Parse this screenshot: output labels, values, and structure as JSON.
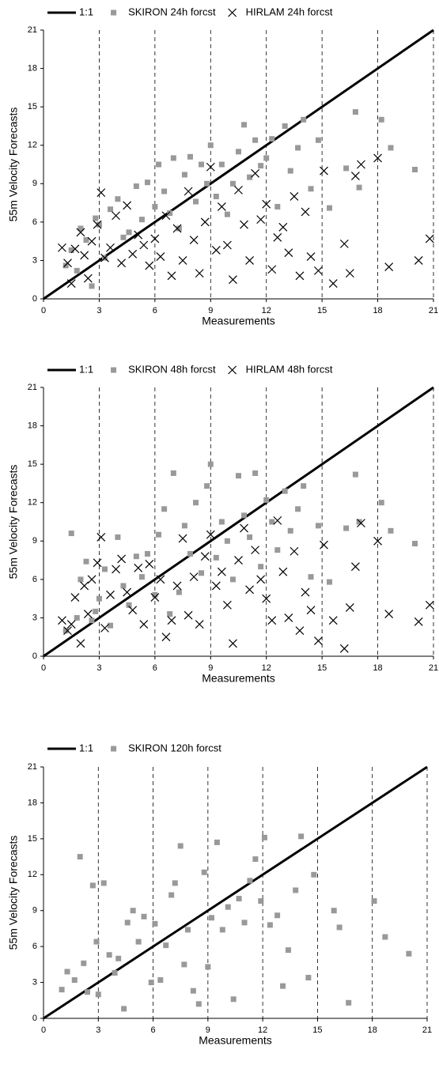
{
  "chart_data": [
    {
      "type": "scatter",
      "xlabel": "Measurements",
      "ylabel": "55m Velocity Forecasts",
      "xlim": [
        0,
        21
      ],
      "ylim": [
        0,
        21
      ],
      "xticks": [
        0,
        3,
        6,
        9,
        12,
        15,
        18,
        21
      ],
      "yticks": [
        0,
        3,
        6,
        9,
        12,
        15,
        18,
        21
      ],
      "grid": "x",
      "series": [
        {
          "name": "1:1",
          "color": "#000000",
          "marker": "line",
          "x": [
            0,
            21
          ],
          "values": [
            0,
            21
          ]
        },
        {
          "name": "SKIRON 24h forcst",
          "color": "#999999",
          "marker": "square",
          "x": [
            1.2,
            1.5,
            1.8,
            2.0,
            2.3,
            2.6,
            2.8,
            3.0,
            3.3,
            3.6,
            4.0,
            4.3,
            4.6,
            5.0,
            5.3,
            5.6,
            6.0,
            6.2,
            6.5,
            6.8,
            7.0,
            7.3,
            7.6,
            7.9,
            8.2,
            8.5,
            8.8,
            9.0,
            9.3,
            9.6,
            9.9,
            10.2,
            10.5,
            10.8,
            11.1,
            11.4,
            11.7,
            12.0,
            12.3,
            12.6,
            13.0,
            13.3,
            13.7,
            14.0,
            14.4,
            14.8,
            15.4,
            16.3,
            16.8,
            17.0,
            18.2,
            18.7,
            20.0
          ],
          "values": [
            2.6,
            3.8,
            2.2,
            5.5,
            4.6,
            1.0,
            6.3,
            5.8,
            3.2,
            7.0,
            7.8,
            4.8,
            5.2,
            8.8,
            6.2,
            9.1,
            7.2,
            10.5,
            8.4,
            6.7,
            11.0,
            5.5,
            9.7,
            11.1,
            7.6,
            10.5,
            9.0,
            12.0,
            8.0,
            10.5,
            6.6,
            9.0,
            11.5,
            13.6,
            9.5,
            12.4,
            10.4,
            11.0,
            12.5,
            7.2,
            13.5,
            10.0,
            11.8,
            14.0,
            8.6,
            12.4,
            7.1,
            10.2,
            14.6,
            8.7,
            14.0,
            11.8,
            10.1
          ]
        },
        {
          "name": "HIRLAM 24h forcst",
          "color": "#000000",
          "marker": "x",
          "x": [
            1.0,
            1.3,
            1.5,
            1.7,
            2.0,
            2.2,
            2.4,
            2.6,
            2.9,
            3.1,
            3.3,
            3.6,
            3.9,
            4.2,
            4.5,
            4.8,
            5.1,
            5.4,
            5.7,
            6.0,
            6.3,
            6.6,
            6.9,
            7.2,
            7.5,
            7.8,
            8.1,
            8.4,
            8.7,
            9.0,
            9.3,
            9.6,
            9.9,
            10.2,
            10.5,
            10.8,
            11.1,
            11.4,
            11.7,
            12.0,
            12.3,
            12.6,
            12.9,
            13.2,
            13.5,
            13.8,
            14.1,
            14.4,
            14.8,
            15.1,
            15.6,
            16.2,
            16.5,
            16.8,
            17.1,
            18.0,
            18.6,
            20.2,
            20.8
          ],
          "values": [
            4.0,
            2.8,
            1.2,
            3.9,
            5.2,
            3.4,
            1.6,
            4.5,
            5.8,
            8.3,
            3.2,
            4.0,
            6.5,
            2.8,
            7.3,
            3.5,
            5.0,
            4.2,
            2.6,
            4.7,
            3.3,
            6.5,
            1.8,
            5.5,
            3.0,
            8.4,
            4.6,
            2.0,
            6.0,
            10.3,
            3.8,
            7.2,
            4.2,
            1.5,
            8.5,
            5.8,
            3.0,
            9.8,
            6.2,
            7.4,
            2.3,
            4.8,
            5.6,
            3.6,
            8.0,
            1.8,
            6.8,
            3.3,
            2.2,
            10.0,
            1.2,
            4.3,
            2.0,
            9.6,
            10.5,
            11.0,
            2.5,
            3.0,
            4.7
          ]
        }
      ]
    },
    {
      "type": "scatter",
      "xlabel": "Measurements",
      "ylabel": "55m Velocity Forecasts",
      "xlim": [
        0,
        21
      ],
      "ylim": [
        0,
        21
      ],
      "xticks": [
        0,
        3,
        6,
        9,
        12,
        15,
        18,
        21
      ],
      "yticks": [
        0,
        3,
        6,
        9,
        12,
        15,
        18,
        21
      ],
      "grid": "x",
      "series": [
        {
          "name": "1:1",
          "color": "#000000",
          "marker": "line",
          "x": [
            0,
            21
          ],
          "values": [
            0,
            21
          ]
        },
        {
          "name": "SKIRON 48h forcst",
          "color": "#999999",
          "marker": "square",
          "x": [
            1.2,
            1.5,
            1.8,
            2.0,
            2.3,
            2.6,
            2.8,
            3.0,
            3.3,
            3.6,
            4.0,
            4.3,
            4.6,
            5.0,
            5.3,
            5.6,
            6.0,
            6.2,
            6.5,
            6.8,
            7.0,
            7.3,
            7.6,
            7.9,
            8.2,
            8.5,
            8.8,
            9.0,
            9.3,
            9.6,
            9.9,
            10.2,
            10.5,
            10.8,
            11.1,
            11.4,
            11.7,
            12.0,
            12.3,
            12.6,
            13.0,
            13.3,
            13.7,
            14.0,
            14.4,
            14.8,
            15.4,
            16.3,
            16.8,
            17.0,
            18.2,
            18.7,
            20.0
          ],
          "values": [
            2.0,
            9.6,
            3.0,
            6.0,
            7.4,
            2.8,
            3.5,
            4.5,
            6.8,
            2.4,
            9.3,
            5.5,
            4.0,
            7.8,
            6.2,
            8.0,
            4.8,
            9.5,
            11.5,
            3.3,
            14.3,
            5.0,
            10.2,
            8.0,
            12.0,
            6.5,
            13.3,
            15.0,
            7.7,
            10.5,
            9.0,
            6.0,
            14.1,
            11.0,
            9.3,
            14.3,
            7.0,
            12.2,
            10.5,
            8.3,
            12.9,
            9.8,
            11.5,
            13.3,
            6.2,
            10.2,
            5.8,
            10.0,
            14.2,
            10.5,
            12.0,
            9.8,
            8.8
          ]
        },
        {
          "name": "HIRLAM 48h forcst",
          "color": "#000000",
          "marker": "x",
          "x": [
            1.0,
            1.3,
            1.5,
            1.7,
            2.0,
            2.2,
            2.4,
            2.6,
            2.9,
            3.1,
            3.3,
            3.6,
            3.9,
            4.2,
            4.5,
            4.8,
            5.1,
            5.4,
            5.7,
            6.0,
            6.3,
            6.6,
            6.9,
            7.2,
            7.5,
            7.8,
            8.1,
            8.4,
            8.7,
            9.0,
            9.3,
            9.6,
            9.9,
            10.2,
            10.5,
            10.8,
            11.1,
            11.4,
            11.7,
            12.0,
            12.3,
            12.6,
            12.9,
            13.2,
            13.5,
            13.8,
            14.1,
            14.4,
            14.8,
            15.1,
            15.6,
            16.2,
            16.5,
            16.8,
            17.1,
            18.0,
            18.6,
            20.2,
            20.8
          ],
          "values": [
            2.8,
            2.0,
            2.5,
            4.6,
            1.0,
            5.5,
            3.3,
            6.0,
            7.3,
            9.3,
            2.2,
            4.8,
            6.8,
            7.6,
            5.0,
            3.6,
            6.9,
            2.5,
            7.2,
            4.6,
            6.0,
            1.5,
            2.8,
            5.5,
            9.2,
            3.2,
            6.2,
            2.5,
            7.8,
            9.5,
            5.5,
            6.6,
            4.0,
            1.0,
            7.5,
            10.0,
            5.2,
            8.3,
            6.0,
            4.5,
            2.8,
            10.6,
            6.6,
            3.0,
            8.2,
            2.0,
            5.0,
            3.6,
            1.2,
            8.7,
            2.8,
            0.6,
            3.8,
            7.0,
            10.4,
            9.0,
            3.3,
            2.7,
            4.0
          ]
        }
      ]
    },
    {
      "type": "scatter",
      "xlabel": "Measurements",
      "ylabel": "55m Velocity Forecasts",
      "xlim": [
        0,
        21
      ],
      "ylim": [
        0,
        21
      ],
      "xticks": [
        0,
        3,
        6,
        9,
        12,
        15,
        18,
        21
      ],
      "yticks": [
        0,
        3,
        6,
        9,
        12,
        15,
        18,
        21
      ],
      "grid": "x",
      "series": [
        {
          "name": "1:1",
          "color": "#000000",
          "marker": "line",
          "x": [
            0,
            21
          ],
          "values": [
            0,
            21
          ]
        },
        {
          "name": "SKIRON 120h forcst",
          "color": "#999999",
          "marker": "square",
          "x": [
            1.0,
            1.3,
            1.7,
            2.0,
            2.2,
            2.4,
            2.7,
            2.9,
            3.0,
            3.3,
            3.6,
            3.9,
            4.1,
            4.4,
            4.6,
            4.9,
            5.2,
            5.5,
            5.9,
            6.1,
            6.4,
            6.7,
            7.0,
            7.2,
            7.5,
            7.7,
            7.9,
            8.2,
            8.5,
            8.8,
            9.0,
            9.2,
            9.5,
            9.8,
            10.1,
            10.4,
            10.7,
            11.0,
            11.3,
            11.6,
            11.9,
            12.1,
            12.4,
            12.8,
            13.1,
            13.4,
            13.8,
            14.1,
            14.5,
            14.8,
            15.9,
            16.2,
            16.7,
            18.1,
            18.7,
            20.0
          ],
          "values": [
            2.4,
            3.9,
            3.2,
            13.5,
            4.6,
            2.2,
            11.1,
            6.4,
            2.0,
            11.3,
            5.3,
            3.8,
            5.0,
            0.8,
            8.0,
            9.0,
            6.4,
            8.5,
            3.0,
            7.9,
            3.2,
            6.1,
            10.3,
            11.3,
            14.4,
            4.5,
            7.4,
            2.3,
            1.2,
            12.2,
            4.3,
            8.4,
            14.7,
            7.4,
            9.3,
            1.6,
            10.0,
            8.0,
            11.5,
            13.3,
            9.8,
            15.1,
            7.8,
            8.6,
            2.7,
            5.7,
            10.7,
            15.2,
            3.4,
            12.0,
            9.0,
            7.6,
            1.3,
            9.8,
            6.8,
            5.4
          ]
        }
      ]
    }
  ]
}
